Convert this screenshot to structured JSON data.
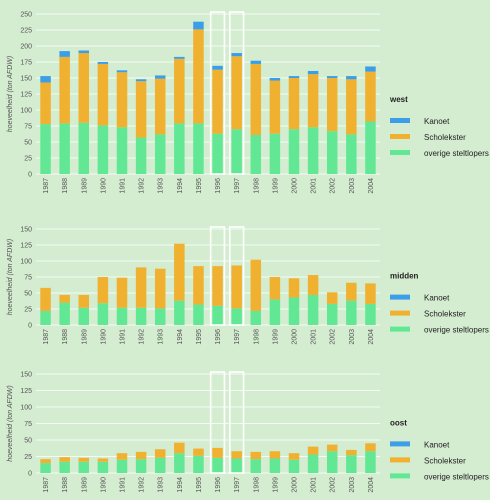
{
  "colors": {
    "background": "#d4edd0",
    "overige": "#62e895",
    "scholekster": "#f0b030",
    "kanoet": "#3a9fe8",
    "gridline": "#ffffff",
    "highlight": "#ffffff"
  },
  "chart_data": [
    {
      "type": "bar",
      "stacked": true,
      "title": "west",
      "ylabel": "hoeveelheid (ton AFDW)",
      "ylim": [
        0,
        250
      ],
      "yticks": [
        0,
        25,
        50,
        75,
        100,
        125,
        150,
        175,
        200,
        225,
        250
      ],
      "categories": [
        "1987",
        "1988",
        "1989",
        "1990",
        "1991",
        "1992",
        "1993",
        "1994",
        "1995",
        "1996",
        "1997",
        "1998",
        "1999",
        "2000",
        "2001",
        "2002",
        "2003",
        "2004"
      ],
      "highlighted_categories": [
        "1996",
        "1997"
      ],
      "legend_position": "right",
      "series": [
        {
          "name": "overige steltlopers",
          "color_key": "overige",
          "values": [
            78,
            79,
            80,
            76,
            73,
            57,
            62,
            79,
            79,
            63,
            70,
            61,
            63,
            70,
            73,
            67,
            62,
            82
          ]
        },
        {
          "name": "Scholekster",
          "color_key": "scholekster",
          "values": [
            65,
            104,
            109,
            96,
            86,
            88,
            87,
            101,
            147,
            100,
            114,
            111,
            83,
            80,
            83,
            83,
            86,
            78
          ]
        },
        {
          "name": "Kanoet",
          "color_key": "kanoet",
          "values": [
            10,
            9,
            4,
            3,
            3,
            3,
            5,
            3,
            12,
            6,
            5,
            5,
            4,
            3,
            5,
            3,
            5,
            8
          ]
        }
      ]
    },
    {
      "type": "bar",
      "stacked": true,
      "title": "midden",
      "ylabel": "hoeveelheid (ton AFDW)",
      "ylim": [
        0,
        150
      ],
      "yticks": [
        0,
        25,
        50,
        75,
        100,
        125,
        150
      ],
      "categories": [
        "1987",
        "1988",
        "1989",
        "1990",
        "1991",
        "1992",
        "1993",
        "1994",
        "1995",
        "1996",
        "1997",
        "1998",
        "1999",
        "2000",
        "2001",
        "2002",
        "2003",
        "2004"
      ],
      "highlighted_categories": [
        "1996",
        "1997"
      ],
      "legend_position": "right",
      "series": [
        {
          "name": "overige steltlopers",
          "color_key": "overige",
          "values": [
            22,
            35,
            27,
            34,
            27,
            27,
            26,
            38,
            32,
            30,
            26,
            22,
            40,
            43,
            47,
            33,
            38,
            33
          ]
        },
        {
          "name": "Scholekster",
          "color_key": "scholekster",
          "values": [
            36,
            12,
            20,
            41,
            47,
            63,
            62,
            89,
            60,
            62,
            67,
            80,
            35,
            30,
            31,
            18,
            28,
            32
          ]
        },
        {
          "name": "Kanoet",
          "color_key": "kanoet",
          "values": [
            0,
            0,
            0,
            0,
            0,
            0,
            0,
            0,
            0,
            0,
            0,
            0,
            0,
            0,
            0,
            0,
            0,
            0
          ]
        }
      ]
    },
    {
      "type": "bar",
      "stacked": true,
      "title": "oost",
      "ylabel": "hoeveelheid (ton AFDW)",
      "ylim": [
        0,
        150
      ],
      "yticks": [
        0,
        25,
        50,
        75,
        100,
        125,
        150
      ],
      "categories": [
        "1987",
        "1988",
        "1989",
        "1990",
        "1991",
        "1992",
        "1993",
        "1994",
        "1995",
        "1996",
        "1997",
        "1998",
        "1999",
        "2000",
        "2001",
        "2002",
        "2003",
        "2004"
      ],
      "highlighted_categories": [
        "1996",
        "1997"
      ],
      "legend_position": "right",
      "series": [
        {
          "name": "overige steltlopers",
          "color_key": "overige",
          "values": [
            15,
            17,
            17,
            17,
            20,
            21,
            23,
            30,
            26,
            23,
            22,
            21,
            22,
            20,
            28,
            33,
            27,
            33
          ]
        },
        {
          "name": "Scholekster",
          "color_key": "scholekster",
          "values": [
            6,
            7,
            6,
            5,
            10,
            11,
            13,
            16,
            11,
            15,
            11,
            11,
            11,
            10,
            12,
            10,
            8,
            12
          ]
        },
        {
          "name": "Kanoet",
          "color_key": "kanoet",
          "values": [
            0,
            0,
            0,
            0,
            0,
            0,
            0,
            0,
            0,
            0,
            0,
            0,
            0,
            0,
            0,
            0,
            0,
            0
          ]
        }
      ]
    }
  ],
  "legend": [
    {
      "label": "Kanoet",
      "color_key": "kanoet"
    },
    {
      "label": "Scholekster",
      "color_key": "scholekster"
    },
    {
      "label": "overige steltlopers",
      "color_key": "overige"
    }
  ]
}
